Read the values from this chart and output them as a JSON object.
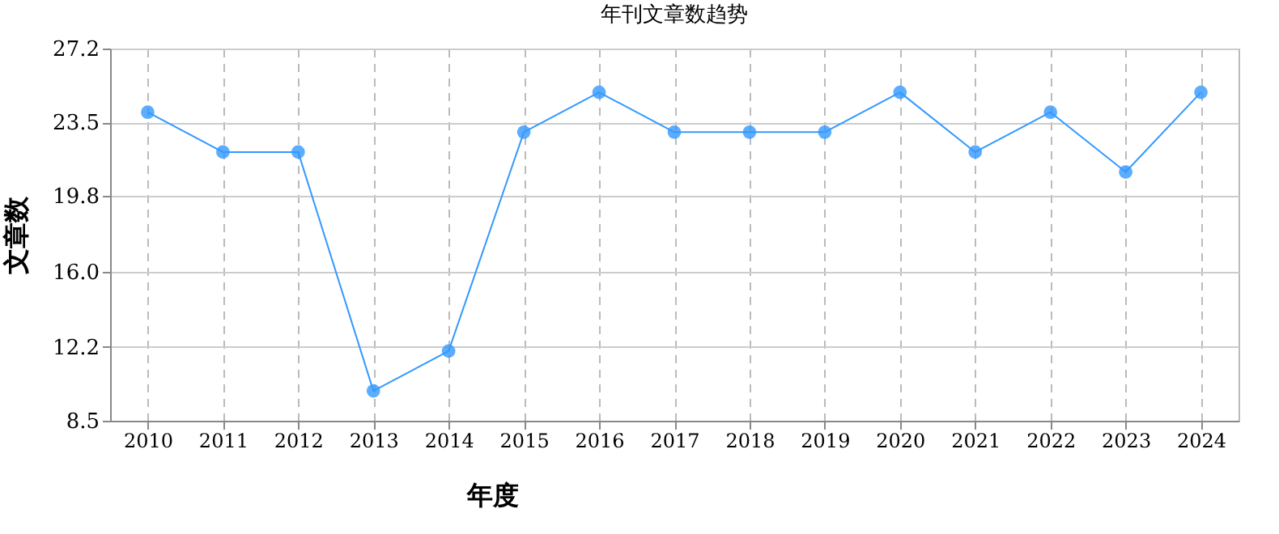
{
  "chart_data": {
    "type": "line",
    "title": "年刊文章数趋势",
    "xlabel": "年度",
    "ylabel": "文章数",
    "categories": [
      "2010",
      "2011",
      "2012",
      "2013",
      "2014",
      "2015",
      "2016",
      "2017",
      "2018",
      "2019",
      "2020",
      "2021",
      "2022",
      "2023",
      "2024"
    ],
    "series": [
      {
        "color": "#3399ff",
        "values": [
          24,
          22,
          22,
          10,
          12,
          23,
          25,
          23,
          23,
          23,
          25,
          22,
          24,
          21,
          25
        ]
      }
    ],
    "ylim": [
      8.5,
      27.2
    ],
    "yticks": [
      8.5,
      12.2,
      {
        "value": 16,
        "label": "16.0"
      },
      19.8,
      23.5,
      27.2
    ],
    "grid": true,
    "marker": "circle",
    "line_style": "solid"
  }
}
